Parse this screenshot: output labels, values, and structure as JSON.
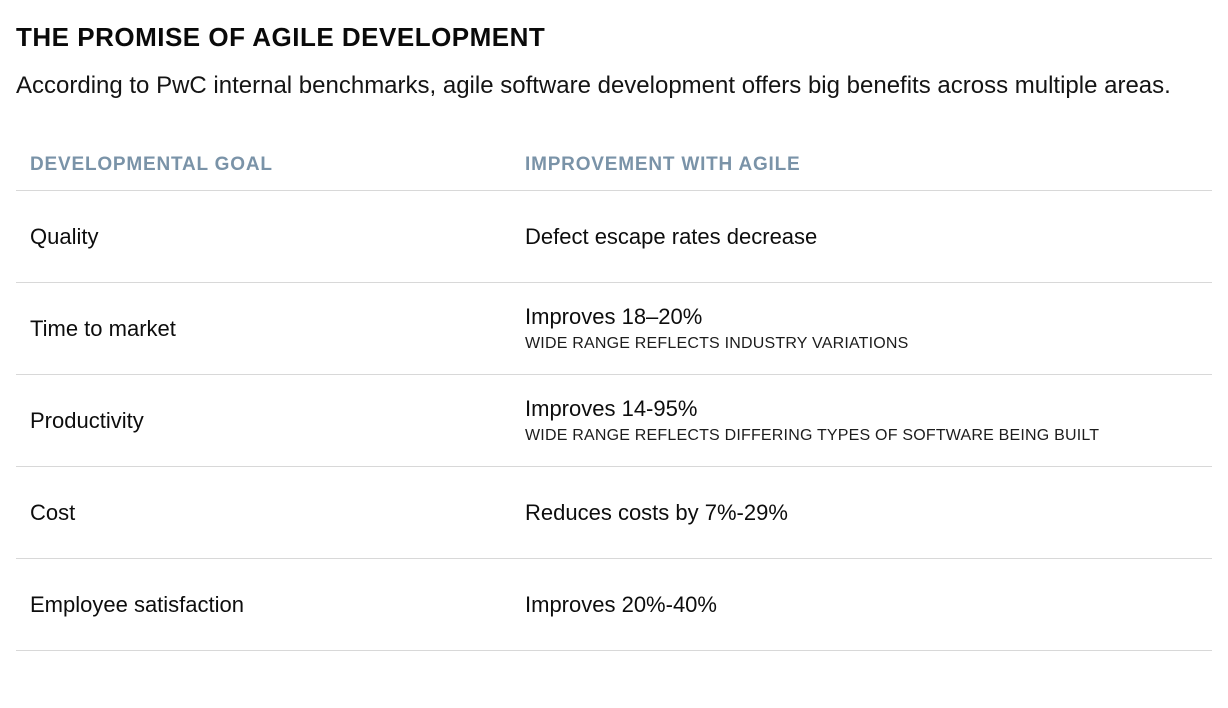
{
  "page": {
    "title": "THE PROMISE OF AGILE DEVELOPMENT",
    "subtitle": "According to PwC internal benchmarks, agile software development offers big benefits across multiple areas."
  },
  "colors": {
    "header_text": "#7A93A8",
    "divider": "#D8D8D8",
    "body_text": "#111111"
  },
  "table": {
    "columns": [
      "DEVELOPMENTAL GOAL",
      "IMPROVEMENT WITH AGILE"
    ],
    "rows": [
      {
        "goal": "Quality",
        "improvement": "Defect escape rates decrease"
      },
      {
        "goal": "Time to market",
        "improvement": "Improves 18–20%",
        "note": "WIDE RANGE REFLECTS INDUSTRY VARIATIONS"
      },
      {
        "goal": "Productivity",
        "improvement": "Improves 14-95%",
        "note": "WIDE RANGE REFLECTS DIFFERING TYPES OF SOFTWARE BEING BUILT"
      },
      {
        "goal": "Cost",
        "improvement": "Reduces costs by 7%-29%"
      },
      {
        "goal": "Employee satisfaction",
        "improvement": "Improves 20%-40%"
      }
    ]
  }
}
